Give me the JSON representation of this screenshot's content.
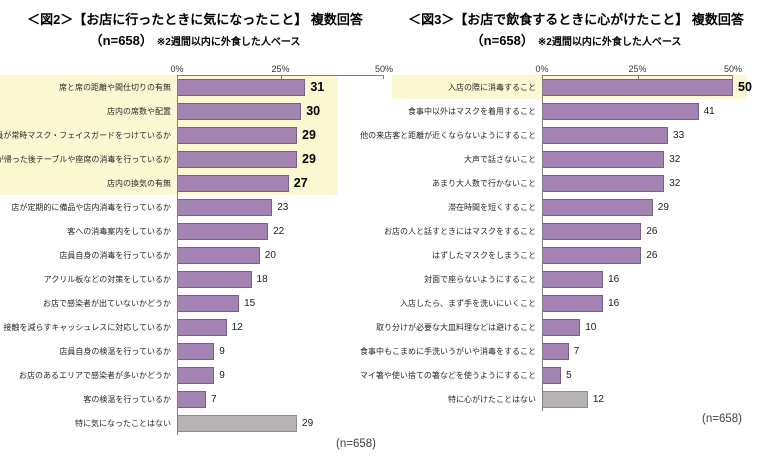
{
  "chart_data": [
    {
      "type": "bar",
      "orientation": "horizontal",
      "title": "＜図2＞【お店に行ったときに気になったこと】 複数回答",
      "title_n": "（n=658）",
      "title_note": "※2週間以内に外食した人ベース",
      "n_label": "(n=658)",
      "xlim": [
        0,
        50
      ],
      "x_ticks": [
        "0%",
        "25%",
        "50%"
      ],
      "legend": "none",
      "colors": {
        "bar": "#A283B2",
        "bar_border": "#7A5C92",
        "gray": "#B7B2B4",
        "gray_border": "#908B8E",
        "highlight_bg": "#FCF9D2"
      },
      "rows": [
        {
          "label": "席と席の距離や間仕切りの有無",
          "value": 31,
          "highlight": true
        },
        {
          "label": "店内の席数や配置",
          "value": 30,
          "highlight": true
        },
        {
          "label": "店員が常時マスク・フェイスガードをつけているか",
          "value": 29,
          "highlight": true
        },
        {
          "label": "客が帰った後テーブルや座席の消毒を行っているか",
          "value": 29,
          "highlight": true
        },
        {
          "label": "店内の換気の有無",
          "value": 27,
          "highlight": true
        },
        {
          "label": "店が定期的に備品や店内消毒を行っているか",
          "value": 23
        },
        {
          "label": "客への消毒案内をしているか",
          "value": 22
        },
        {
          "label": "店員自身の消毒を行っているか",
          "value": 20
        },
        {
          "label": "アクリル板などの対策をしているか",
          "value": 18
        },
        {
          "label": "お店で感染者が出ていないかどうか",
          "value": 15
        },
        {
          "label": "接触を減らすキャッシュレスに対応しているか",
          "value": 12
        },
        {
          "label": "店員自身の検温を行っているか",
          "value": 9
        },
        {
          "label": "お店のあるエリアで感染者が多いかどうか",
          "value": 9
        },
        {
          "label": "客の検温を行っているか",
          "value": 7
        },
        {
          "label": "特に気になったことはない",
          "value": 29,
          "gray": true
        }
      ]
    },
    {
      "type": "bar",
      "orientation": "horizontal",
      "title": "＜図3＞【お店で飲食するときに心がけたこと】 複数回答",
      "title_n": "（n=658）",
      "title_note": "※2週間以内に外食した人ベース",
      "n_label": "(n=658)",
      "xlim": [
        0,
        50
      ],
      "x_ticks": [
        "0%",
        "25%",
        "50%"
      ],
      "legend": "none",
      "colors": {
        "bar": "#A283B2",
        "bar_border": "#7A5C92",
        "gray": "#B7B2B4",
        "gray_border": "#908B8E",
        "highlight_bg": "#FCF9D2"
      },
      "rows": [
        {
          "label": "入店の際に消毒すること",
          "value": 50,
          "highlight": true
        },
        {
          "label": "食事中以外はマスクを着用すること",
          "value": 41
        },
        {
          "label": "他の来店客と距離が近くならないようにすること",
          "value": 33
        },
        {
          "label": "大声で話さないこと",
          "value": 32
        },
        {
          "label": "あまり大人数で行かないこと",
          "value": 32
        },
        {
          "label": "滞在時間を短くすること",
          "value": 29
        },
        {
          "label": "お店の人と話すときにはマスクをすること",
          "value": 26
        },
        {
          "label": "はずしたマスクをしまうこと",
          "value": 26
        },
        {
          "label": "対面で座らないようにすること",
          "value": 16
        },
        {
          "label": "入店したら、まず手を洗いにいくこと",
          "value": 16
        },
        {
          "label": "取り分けが必要な大皿料理などは避けること",
          "value": 10
        },
        {
          "label": "食事中もこまめに手洗いうがいや消毒をすること",
          "value": 7
        },
        {
          "label": "マイ箸や使い捨ての箸などを使うようにすること",
          "value": 5
        },
        {
          "label": "特に心がけたことはない",
          "value": 12,
          "gray": true
        }
      ]
    }
  ]
}
